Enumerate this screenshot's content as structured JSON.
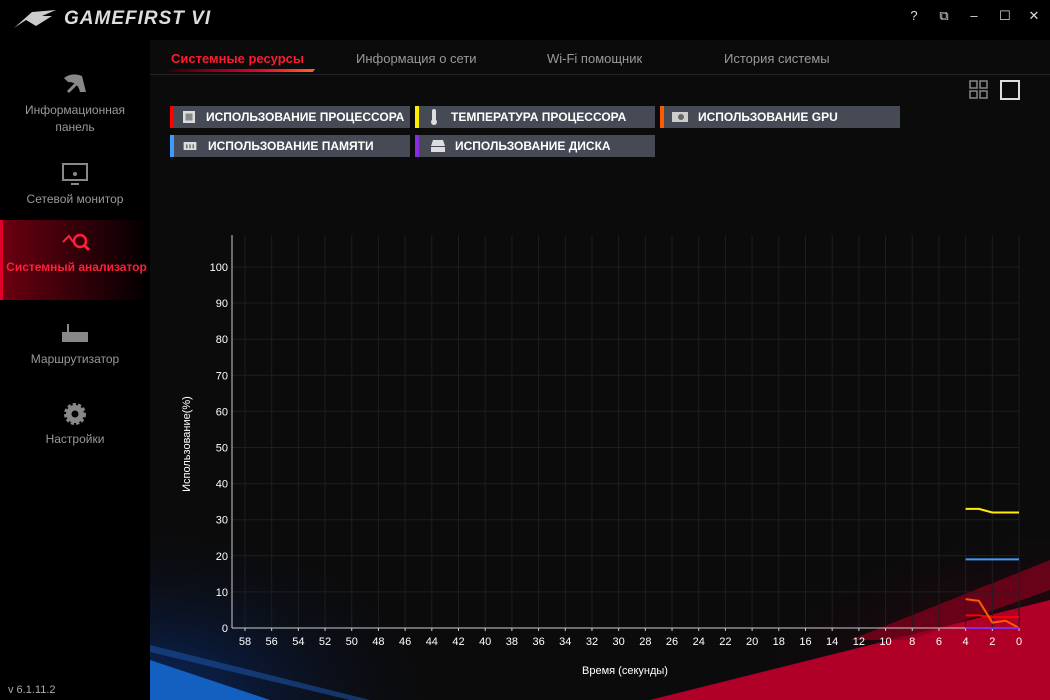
{
  "app": {
    "title": "GAMEFIRST VI",
    "version": "v 6.1.11.2"
  },
  "window_controls": {
    "help": "?",
    "restore_small": "⧉",
    "minimize": "–",
    "maximize": "☐",
    "close": "✕"
  },
  "sidebar": {
    "items": [
      {
        "label": "Информационная панель",
        "icon": "gauge-icon"
      },
      {
        "label": "Сетевой монитор",
        "icon": "monitor-wifi-icon"
      },
      {
        "label": "Системный анализатор",
        "icon": "analyzer-icon",
        "active": true
      },
      {
        "label": "Маршрутизатор",
        "icon": "router-icon"
      },
      {
        "label": "Настройки",
        "icon": "gear-icon"
      }
    ]
  },
  "tabs": [
    {
      "label": "Системные ресурсы",
      "active": true
    },
    {
      "label": "Информация о сети"
    },
    {
      "label": "Wi-Fi помощник"
    },
    {
      "label": "История системы"
    }
  ],
  "legend": [
    {
      "label": "ИСПОЛЬЗОВАНИЕ ПРОЦЕССОРА",
      "color": "#ff0000",
      "icon": "cpu-icon"
    },
    {
      "label": "ТЕМПЕРАТУРА ПРОЦЕССОРА",
      "color": "#ffee00",
      "icon": "thermometer-icon"
    },
    {
      "label": "ИСПОЛЬЗОВАНИЕ GPU",
      "color": "#ff5a00",
      "icon": "gpu-icon"
    },
    {
      "label": "ИСПОЛЬЗОВАНИЕ ПАМЯТИ",
      "color": "#3d9bff",
      "icon": "memory-icon"
    },
    {
      "label": "ИСПОЛЬЗОВАНИЕ ДИСКА",
      "color": "#8a2be2",
      "icon": "disk-icon"
    }
  ],
  "chart_data": {
    "type": "line",
    "xlabel": "Время (секунды)",
    "ylabel": "Использование(%)",
    "xlim": [
      60,
      0
    ],
    "ylim": [
      0,
      100
    ],
    "xticks": [
      58,
      56,
      54,
      52,
      50,
      48,
      46,
      44,
      42,
      40,
      38,
      36,
      34,
      32,
      30,
      28,
      26,
      24,
      22,
      20,
      18,
      16,
      14,
      12,
      10,
      8,
      6,
      4,
      2,
      0
    ],
    "yticks": [
      0,
      10,
      20,
      30,
      40,
      50,
      60,
      70,
      80,
      90,
      100
    ],
    "grid": true,
    "x": [
      4,
      3,
      2,
      1,
      0
    ],
    "series": [
      {
        "name": "ИСПОЛЬЗОВАНИЕ ПРОЦЕССОРА",
        "color": "#ff0000",
        "values": [
          3.5,
          3.5,
          3,
          3,
          3
        ]
      },
      {
        "name": "ТЕМПЕРАТУРА ПРОЦЕССОРА",
        "color": "#ffee00",
        "values": [
          33,
          33,
          32,
          32,
          32
        ]
      },
      {
        "name": "ИСПОЛЬЗОВАНИЕ GPU",
        "color": "#ff5a00",
        "values": [
          8,
          7.5,
          1.5,
          2,
          0
        ]
      },
      {
        "name": "ИСПОЛЬЗОВАНИЕ ПАМЯТИ",
        "color": "#3d9bff",
        "values": [
          19,
          19,
          19,
          19,
          19
        ]
      },
      {
        "name": "ИСПОЛЬЗОВАНИЕ ДИСКА",
        "color": "#8a2be2",
        "values": [
          0,
          0,
          0,
          0,
          0
        ]
      }
    ]
  }
}
